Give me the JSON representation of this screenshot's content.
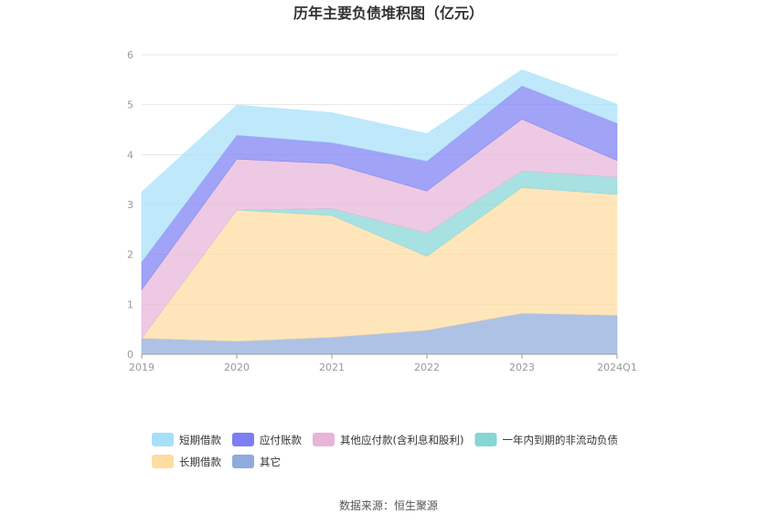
{
  "chart_data": {
    "type": "area",
    "stacked": true,
    "title": "历年主要负债堆积图（亿元）",
    "categories": [
      "2019",
      "2020",
      "2021",
      "2022",
      "2023",
      "2024Q1"
    ],
    "ylim": [
      0,
      6
    ],
    "yticks": [
      "0",
      "1",
      "2",
      "3",
      "4",
      "5",
      "6"
    ],
    "grid": true,
    "legend_position": "bottom",
    "series": [
      {
        "name": "其它",
        "color": "#8faadc",
        "values": [
          0.32,
          0.26,
          0.34,
          0.48,
          0.82,
          0.78
        ]
      },
      {
        "name": "长期借款",
        "color": "#ffdca0",
        "values": [
          0.0,
          2.63,
          2.44,
          1.48,
          2.52,
          2.42
        ]
      },
      {
        "name": "一年内到期的非流动负债",
        "color": "#86d6d6",
        "values": [
          0.0,
          0.0,
          0.14,
          0.47,
          0.33,
          0.35
        ]
      },
      {
        "name": "其他应付款(含利息和股利)",
        "color": "#e8b4d8",
        "values": [
          0.97,
          1.02,
          0.9,
          0.84,
          1.04,
          0.33
        ]
      },
      {
        "name": "应付账款",
        "color": "#7b7ff2",
        "values": [
          0.56,
          0.48,
          0.42,
          0.6,
          0.67,
          0.75
        ]
      },
      {
        "name": "短期借款",
        "color": "#a6e0fa",
        "values": [
          1.4,
          0.6,
          0.6,
          0.55,
          0.32,
          0.38
        ]
      }
    ],
    "legend_order": [
      "短期借款",
      "应付账款",
      "其他应付款(含利息和股利)",
      "一年内到期的非流动负债",
      "长期借款",
      "其它"
    ]
  },
  "source": "数据来源：恒生聚源"
}
